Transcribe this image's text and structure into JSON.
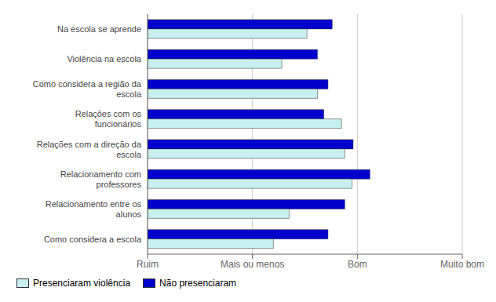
{
  "chart_data": {
    "type": "bar",
    "orientation": "horizontal",
    "categories": [
      "Como considera a escola",
      "Relacionamento entre os\nalunos",
      "Relacionamento com\nprofessores",
      "Relações com a direção da\nescola",
      "Relações com os\nfuncionários",
      "Como considera a região da\nescola",
      "Violência na escola",
      "Na escola se aprende"
    ],
    "series": [
      {
        "name": "Presenciaram violência",
        "color": "#c8f0f0",
        "values": [
          2.2,
          2.35,
          2.95,
          2.88,
          2.85,
          2.62,
          2.28,
          2.52
        ]
      },
      {
        "name": "Não presenciaram",
        "color": "#0000cc",
        "values": [
          2.72,
          2.88,
          3.12,
          2.96,
          2.68,
          2.72,
          2.62,
          2.76
        ]
      }
    ],
    "xlim": [
      1,
      4
    ],
    "xticks": [
      {
        "value": 1,
        "label": "Ruim"
      },
      {
        "value": 2,
        "label": "Mais ou menos"
      },
      {
        "value": 3,
        "label": "Bom"
      },
      {
        "value": 4,
        "label": "Muito bom"
      }
    ],
    "grid": true,
    "legend": "lower left"
  }
}
